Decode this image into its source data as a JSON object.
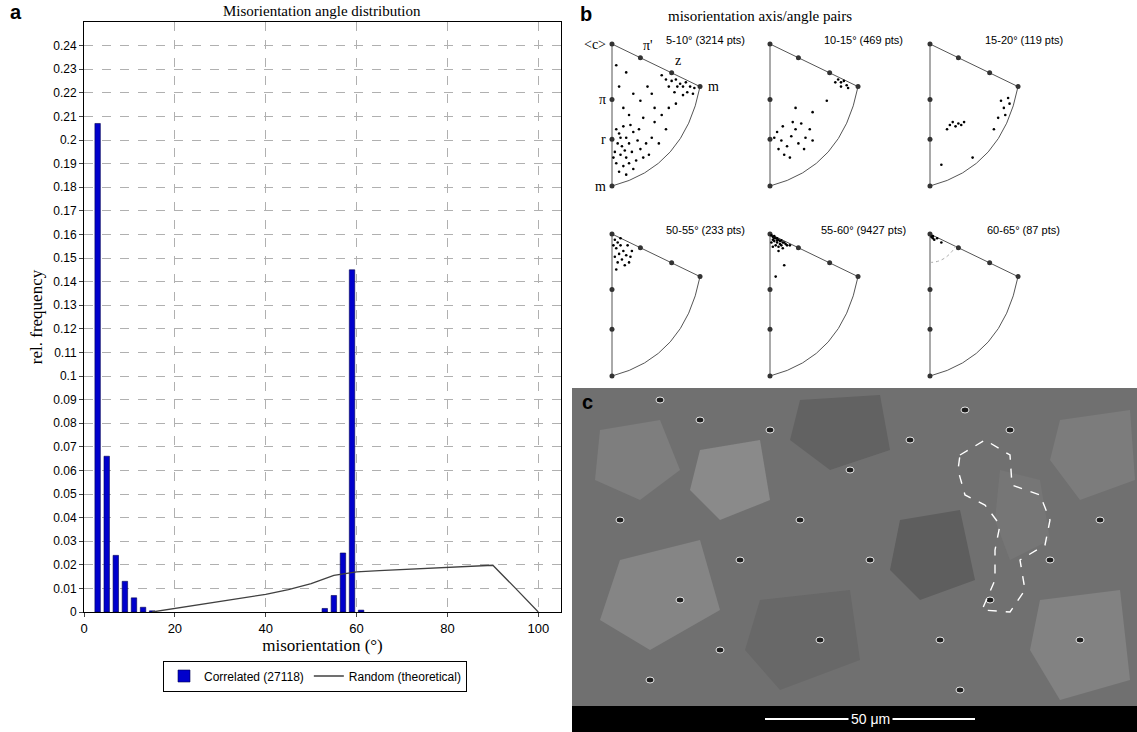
{
  "chart_data": [
    {
      "panel": "a",
      "type": "bar",
      "title": "Misorientation angle distribution",
      "x_label": "misorientation (°)",
      "y_label": "rel. frequency",
      "xlim": [
        0,
        105
      ],
      "xticks": [
        0,
        20,
        40,
        60,
        80,
        100
      ],
      "ylim": [
        0,
        0.25
      ],
      "yticks": [
        0,
        0.01,
        0.02,
        0.03,
        0.04,
        0.05,
        0.06,
        0.07,
        0.08,
        0.09,
        0.1,
        0.11,
        0.12,
        0.13,
        0.14,
        0.15,
        0.16,
        0.17,
        0.18,
        0.19,
        0.2,
        0.21,
        0.22,
        0.23,
        0.24
      ],
      "grid": true,
      "legend": "bottom",
      "series": [
        {
          "name": "Correlated (27118)",
          "type": "bar",
          "color": "#0000cc",
          "x": [
            3,
            5,
            7,
            9,
            11,
            13,
            15,
            53,
            55,
            57,
            59,
            61
          ],
          "values": [
            0.207,
            0.066,
            0.024,
            0.013,
            0.006,
            0.002,
            0.0005,
            0.0015,
            0.007,
            0.025,
            0.145,
            0.0008
          ]
        },
        {
          "name": "Random (theoretical)",
          "type": "line",
          "color": "#404040",
          "x": [
            15,
            20,
            25,
            30,
            35,
            40,
            45,
            50,
            55,
            60,
            65,
            70,
            75,
            80,
            85,
            90,
            95,
            100
          ],
          "values": [
            0,
            0.0015,
            0.003,
            0.0045,
            0.006,
            0.0075,
            0.0095,
            0.012,
            0.0155,
            0.017,
            0.0175,
            0.018,
            0.0185,
            0.019,
            0.0195,
            0.0198,
            0.01,
            0
          ]
        }
      ]
    },
    {
      "panel": "b",
      "type": "scatter",
      "title": "misorientation axis/angle pairs",
      "tick_labels": false,
      "color": "#000000",
      "xlim": [
        -10,
        100
      ],
      "ylim": [
        105,
        -10
      ],
      "poles": [
        {
          "label": "<c>",
          "x": 0,
          "y": 0
        },
        {
          "label": "π",
          "x": 0,
          "y": 39
        },
        {
          "label": "r",
          "x": 0,
          "y": 67
        },
        {
          "label": "m",
          "x": 0,
          "y": 100
        },
        {
          "label": "π'",
          "x": 20,
          "y": 9.7
        },
        {
          "label": "z",
          "x": 42,
          "y": 20.3
        },
        {
          "label": "m",
          "x": 62,
          "y": 30
        }
      ],
      "panels": [
        {
          "title": "5-10° (3214 pts)",
          "x": [
            3,
            5,
            8,
            10,
            4,
            7,
            12,
            15,
            18,
            2,
            6,
            10,
            14,
            20,
            24,
            3,
            8,
            12,
            17,
            22,
            5,
            10,
            15,
            26,
            28,
            6,
            13,
            9,
            19,
            1,
            5,
            10,
            15,
            8,
            20,
            25,
            3,
            12,
            30,
            22,
            38,
            42,
            45,
            48,
            50,
            52,
            55,
            58,
            46,
            40,
            44,
            53,
            57,
            35,
            50,
            30,
            35,
            40,
            28,
            45,
            38,
            33
          ],
          "y": [
            60,
            63,
            58,
            66,
            70,
            72,
            70,
            62,
            68,
            76,
            78,
            80,
            76,
            74,
            70,
            84,
            86,
            84,
            82,
            80,
            90,
            92,
            88,
            78,
            66,
            66,
            57,
            75,
            60,
            80,
            30,
            20,
            35,
            45,
            40,
            30,
            15,
            50,
            45,
            52,
            25,
            26,
            25,
            28,
            30,
            27,
            30,
            31,
            30,
            30,
            34,
            34,
            35,
            22,
            36,
            55,
            50,
            45,
            35,
            42,
            60,
            70
          ]
        },
        {
          "title": "10-15° (469 pts)",
          "x": [
            5,
            8,
            12,
            15,
            18,
            20,
            25,
            10,
            6,
            22,
            28,
            14,
            3,
            16,
            30,
            24,
            9,
            48,
            50,
            52,
            54,
            50,
            46,
            55,
            30,
            18,
            40
          ],
          "y": [
            62,
            68,
            72,
            65,
            60,
            70,
            66,
            78,
            74,
            56,
            60,
            80,
            66,
            55,
            68,
            74,
            58,
            25,
            27,
            26,
            29,
            30,
            27,
            31,
            48,
            45,
            40
          ]
        },
        {
          "title": "15-20° (119 pts)",
          "x": [
            14,
            16,
            18,
            20,
            22,
            24,
            12,
            50,
            52,
            55,
            48,
            53,
            45,
            8,
            30,
            56
          ],
          "y": [
            57,
            55,
            58,
            56,
            57,
            55,
            60,
            40,
            45,
            38,
            52,
            50,
            60,
            85,
            80,
            42
          ]
        },
        {
          "title": "50-55° (233 pts)",
          "x": [
            2,
            4,
            6,
            3,
            8,
            5,
            10,
            2,
            7,
            12,
            4,
            9,
            6,
            11,
            14,
            3,
            1,
            13
          ],
          "y": [
            4,
            6,
            8,
            10,
            12,
            14,
            15,
            16,
            18,
            20,
            20,
            22,
            3,
            8,
            12,
            25,
            8,
            16
          ]
        },
        {
          "title": "55-60° (9427 pts)",
          "x": [
            1,
            2,
            3,
            4,
            5,
            6,
            7,
            8,
            2,
            3,
            5,
            7,
            9,
            10,
            1,
            4,
            6,
            8,
            11,
            2,
            3,
            5,
            12,
            9,
            14,
            6,
            10,
            4
          ],
          "y": [
            1,
            2,
            1.5,
            3,
            3,
            4,
            5,
            4.5,
            4,
            5,
            6,
            7,
            6,
            6,
            6,
            8,
            9,
            8,
            7,
            9,
            3,
            4.5,
            8,
            10,
            8,
            12,
            22,
            30
          ]
        },
        {
          "title": "60-65° (87 pts)",
          "x": [
            1,
            2,
            3,
            2,
            8,
            5
          ],
          "y": [
            2,
            3,
            4,
            1.5,
            6,
            3
          ]
        }
      ]
    }
  ],
  "image_panel": {
    "panel": "c",
    "scale_bar": "50 μm"
  }
}
